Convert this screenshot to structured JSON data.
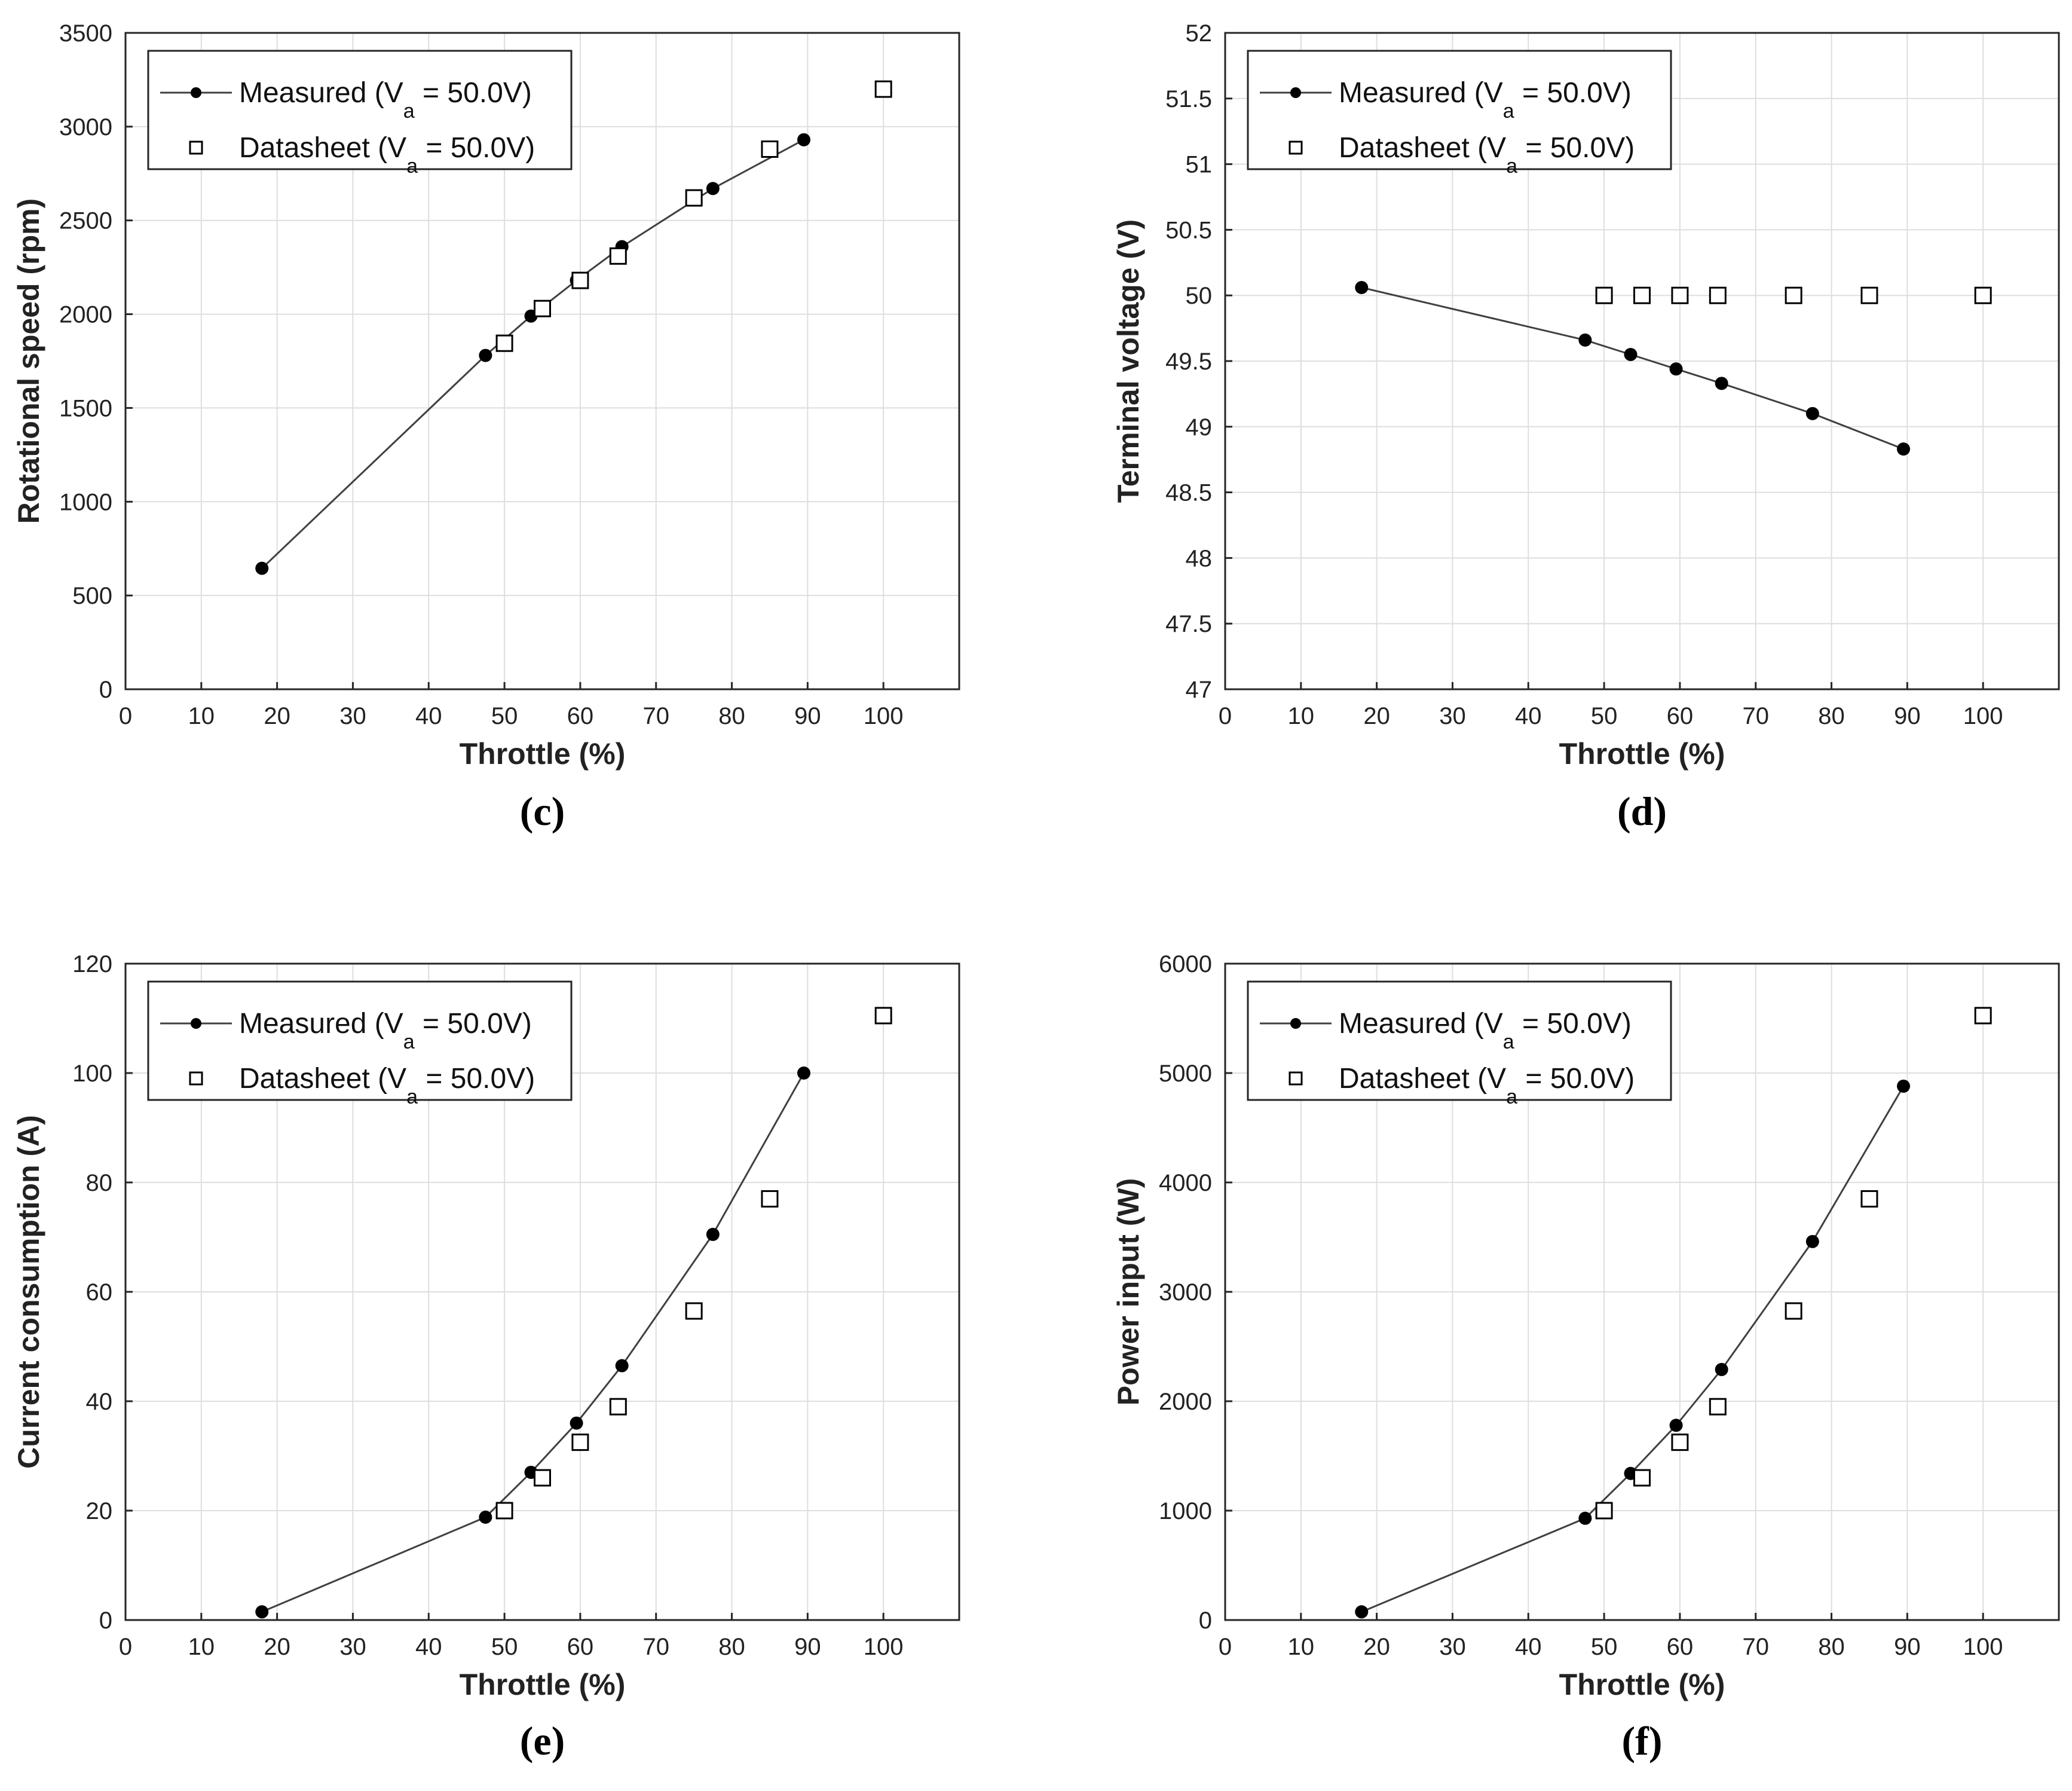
{
  "figure_panels": [
    "(c)",
    "(d)",
    "(e)",
    "(f)"
  ],
  "chart_data": [
    {
      "type": "line",
      "panel_label": "(c)",
      "xlabel": "Throttle (%)",
      "ylabel": "Rotational speed (rpm)",
      "xlim": [
        0,
        110
      ],
      "ylim": [
        0,
        3500
      ],
      "xticks": [
        0,
        10,
        20,
        30,
        40,
        50,
        60,
        70,
        80,
        90,
        100
      ],
      "yticks": [
        0,
        500,
        1000,
        1500,
        2000,
        2500,
        3000,
        3500
      ],
      "grid": true,
      "legend": {
        "position": "top-left",
        "entries": [
          {
            "prefix": "Measured (V",
            "sub": "a",
            "suffix": " = 50.0V)",
            "marker": "filled-circle-line"
          },
          {
            "prefix": "Datasheet (V",
            "sub": "a",
            "suffix": " = 50.0V)",
            "marker": "open-square"
          }
        ]
      },
      "series": [
        {
          "name": "Measured (Va = 50.0V)",
          "x": [
            18,
            47.5,
            53.5,
            59.5,
            65.5,
            77.5,
            89.5
          ],
          "y": [
            645,
            1780,
            1990,
            2180,
            2360,
            2670,
            2930
          ]
        },
        {
          "name": "Datasheet (Va = 50.0V)",
          "x": [
            50,
            55,
            60,
            65,
            75,
            85,
            100
          ],
          "y": [
            1845,
            2030,
            2180,
            2310,
            2620,
            2880,
            3200
          ]
        }
      ]
    },
    {
      "type": "line",
      "panel_label": "(d)",
      "xlabel": "Throttle (%)",
      "ylabel": "Terminal voltage (V)",
      "xlim": [
        0,
        110
      ],
      "ylim": [
        47,
        52
      ],
      "xticks": [
        0,
        10,
        20,
        30,
        40,
        50,
        60,
        70,
        80,
        90,
        100
      ],
      "yticks": [
        47,
        47.5,
        48,
        48.5,
        49,
        49.5,
        50,
        50.5,
        51,
        51.5,
        52
      ],
      "grid": true,
      "legend": {
        "position": "top-left",
        "entries": [
          {
            "prefix": "Measured (V",
            "sub": "a",
            "suffix": " = 50.0V)",
            "marker": "filled-circle-line"
          },
          {
            "prefix": "Datasheet (V",
            "sub": "a",
            "suffix": " = 50.0V)",
            "marker": "open-square"
          }
        ]
      },
      "series": [
        {
          "name": "Measured (Va = 50.0V)",
          "x": [
            18,
            47.5,
            53.5,
            59.5,
            65.5,
            77.5,
            89.5
          ],
          "y": [
            50.06,
            49.66,
            49.55,
            49.44,
            49.33,
            49.1,
            48.83
          ]
        },
        {
          "name": "Datasheet (Va = 50.0V)",
          "x": [
            50,
            55,
            60,
            65,
            75,
            85,
            100
          ],
          "y": [
            50,
            50,
            50,
            50,
            50,
            50,
            50
          ]
        }
      ]
    },
    {
      "type": "line",
      "panel_label": "(e)",
      "xlabel": "Throttle (%)",
      "ylabel": "Current consumption (A)",
      "xlim": [
        0,
        110
      ],
      "ylim": [
        0,
        120
      ],
      "xticks": [
        0,
        10,
        20,
        30,
        40,
        50,
        60,
        70,
        80,
        90,
        100
      ],
      "yticks": [
        0,
        20,
        40,
        60,
        80,
        100,
        120
      ],
      "grid": true,
      "legend": {
        "position": "top-left",
        "entries": [
          {
            "prefix": "Measured (V",
            "sub": "a",
            "suffix": " = 50.0V)",
            "marker": "filled-circle-line"
          },
          {
            "prefix": "Datasheet (V",
            "sub": "a",
            "suffix": " = 50.0V)",
            "marker": "open-square"
          }
        ]
      },
      "series": [
        {
          "name": "Measured (Va = 50.0V)",
          "x": [
            18,
            47.5,
            53.5,
            59.5,
            65.5,
            77.5,
            89.5
          ],
          "y": [
            1.5,
            18.8,
            27,
            36,
            46.5,
            70.5,
            100
          ]
        },
        {
          "name": "Datasheet (Va = 50.0V)",
          "x": [
            50,
            55,
            60,
            65,
            75,
            85,
            100
          ],
          "y": [
            20,
            26,
            32.5,
            39,
            56.5,
            77,
            110.5
          ]
        }
      ]
    },
    {
      "type": "line",
      "panel_label": "(f)",
      "xlabel": "Throttle (%)",
      "ylabel": "Power input (W)",
      "xlim": [
        0,
        110
      ],
      "ylim": [
        0,
        6000
      ],
      "xticks": [
        0,
        10,
        20,
        30,
        40,
        50,
        60,
        70,
        80,
        90,
        100
      ],
      "yticks": [
        0,
        1000,
        2000,
        3000,
        4000,
        5000,
        6000
      ],
      "grid": true,
      "legend": {
        "position": "top-left",
        "entries": [
          {
            "prefix": "Measured (V",
            "sub": "a",
            "suffix": " = 50.0V)",
            "marker": "filled-circle-line"
          },
          {
            "prefix": "Datasheet (V",
            "sub": "a",
            "suffix": " = 50.0V)",
            "marker": "open-square"
          }
        ]
      },
      "series": [
        {
          "name": "Measured (Va = 50.0V)",
          "x": [
            18,
            47.5,
            53.5,
            59.5,
            65.5,
            77.5,
            89.5
          ],
          "y": [
            75,
            930,
            1340,
            1780,
            2290,
            3460,
            4880
          ]
        },
        {
          "name": "Datasheet (Va = 50.0V)",
          "x": [
            50,
            55,
            60,
            65,
            75,
            85,
            100
          ],
          "y": [
            1000,
            1300,
            1625,
            1950,
            2825,
            3850,
            5525
          ]
        }
      ]
    }
  ]
}
